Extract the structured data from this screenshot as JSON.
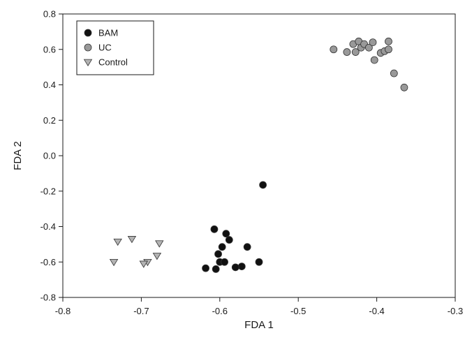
{
  "chart_data": {
    "type": "scatter",
    "title": "",
    "xlabel": "FDA 1",
    "ylabel": "FDA 2",
    "xlim": [
      -0.8,
      -0.3
    ],
    "ylim": [
      -0.8,
      0.8
    ],
    "x_ticks": [
      -0.8,
      -0.7,
      -0.6,
      -0.5,
      -0.4,
      -0.3
    ],
    "x_tick_labels": [
      "-0.8",
      "-0.7",
      "-0.6",
      "-0.5",
      "-0.4",
      "-0.3"
    ],
    "y_ticks": [
      -0.8,
      -0.6,
      -0.4,
      -0.2,
      0.0,
      0.2,
      0.4,
      0.6,
      0.8
    ],
    "y_tick_labels": [
      "-0.8",
      "-0.6",
      "-0.4",
      "-0.2",
      "0.0",
      "0.2",
      "0.4",
      "0.6",
      "0.8"
    ],
    "grid": false,
    "legend_position": "top-left",
    "series": [
      {
        "name": "BAM",
        "marker": "circle",
        "color": "#111111",
        "points": [
          [
            -0.545,
            -0.165
          ],
          [
            -0.607,
            -0.415
          ],
          [
            -0.592,
            -0.44
          ],
          [
            -0.588,
            -0.475
          ],
          [
            -0.565,
            -0.515
          ],
          [
            -0.597,
            -0.515
          ],
          [
            -0.602,
            -0.555
          ],
          [
            -0.6,
            -0.6
          ],
          [
            -0.594,
            -0.6
          ],
          [
            -0.55,
            -0.6
          ],
          [
            -0.572,
            -0.625
          ],
          [
            -0.58,
            -0.63
          ],
          [
            -0.618,
            -0.635
          ],
          [
            -0.605,
            -0.64
          ]
        ]
      },
      {
        "name": "UC",
        "marker": "circle",
        "color": "#999999",
        "points": [
          [
            -0.455,
            0.6
          ],
          [
            -0.438,
            0.585
          ],
          [
            -0.43,
            0.63
          ],
          [
            -0.427,
            0.585
          ],
          [
            -0.423,
            0.645
          ],
          [
            -0.42,
            0.61
          ],
          [
            -0.416,
            0.63
          ],
          [
            -0.41,
            0.61
          ],
          [
            -0.405,
            0.64
          ],
          [
            -0.403,
            0.54
          ],
          [
            -0.395,
            0.58
          ],
          [
            -0.39,
            0.59
          ],
          [
            -0.385,
            0.645
          ],
          [
            -0.385,
            0.6
          ],
          [
            -0.378,
            0.465
          ],
          [
            -0.365,
            0.385
          ]
        ]
      },
      {
        "name": "Control",
        "marker": "triangle-down",
        "color": "#b3b3b3",
        "points": [
          [
            -0.73,
            -0.485
          ],
          [
            -0.712,
            -0.47
          ],
          [
            -0.677,
            -0.495
          ],
          [
            -0.735,
            -0.6
          ],
          [
            -0.68,
            -0.565
          ],
          [
            -0.692,
            -0.6
          ],
          [
            -0.697,
            -0.61
          ]
        ]
      }
    ]
  }
}
